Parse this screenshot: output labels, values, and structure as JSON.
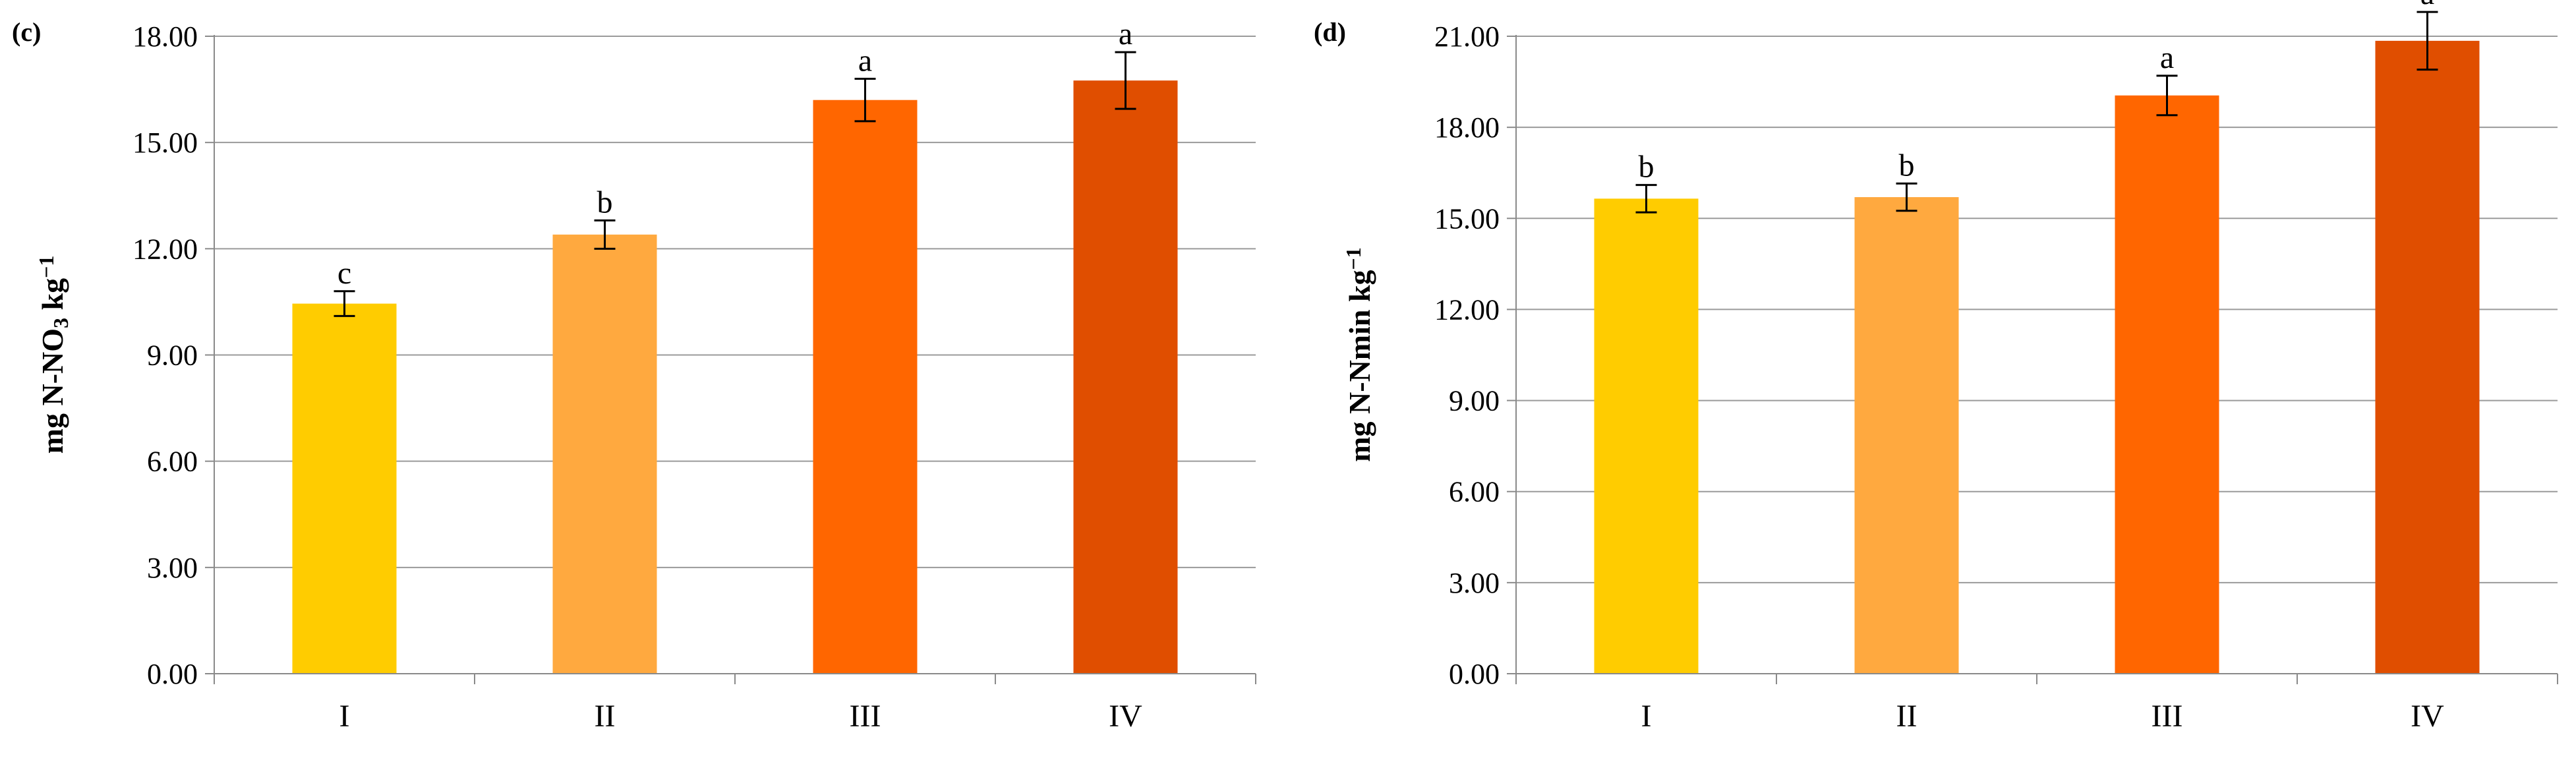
{
  "chart_data": [
    {
      "type": "bar",
      "panel": "(c)",
      "title": "",
      "xlabel": "",
      "ylabel": {
        "prefix": "mg N-NO",
        "sub": "3",
        "suffix": " kg",
        "sup": "−1"
      },
      "categories": [
        "I",
        "II",
        "III",
        "IV"
      ],
      "values": [
        10.45,
        12.4,
        16.2,
        16.75
      ],
      "errors": [
        0.35,
        0.4,
        0.6,
        0.8
      ],
      "significance": [
        "c",
        "b",
        "a",
        "a"
      ],
      "colors": [
        "#FFCC00",
        "#FFA93F",
        "#FF6600",
        "#E04E00"
      ],
      "ylim": [
        0,
        18
      ],
      "yticks": [
        "0.00",
        "3.00",
        "6.00",
        "9.00",
        "12.00",
        "15.00",
        "18.00"
      ],
      "grid": true,
      "legend": "none"
    },
    {
      "type": "bar",
      "panel": "(d)",
      "title": "",
      "xlabel": "",
      "ylabel": {
        "prefix": "mg N-Nmin kg",
        "sub": "",
        "suffix": "",
        "sup": "−1"
      },
      "categories": [
        "I",
        "II",
        "III",
        "IV"
      ],
      "values": [
        15.65,
        15.7,
        19.05,
        20.85
      ],
      "errors": [
        0.45,
        0.45,
        0.65,
        0.95
      ],
      "significance": [
        "b",
        "b",
        "a",
        "a"
      ],
      "colors": [
        "#FFCC00",
        "#FFA93F",
        "#FF6600",
        "#E04E00"
      ],
      "ylim": [
        0,
        21
      ],
      "yticks": [
        "0.00",
        "3.00",
        "6.00",
        "9.00",
        "12.00",
        "15.00",
        "18.00",
        "21.00"
      ],
      "grid": true,
      "legend": "none"
    }
  ]
}
